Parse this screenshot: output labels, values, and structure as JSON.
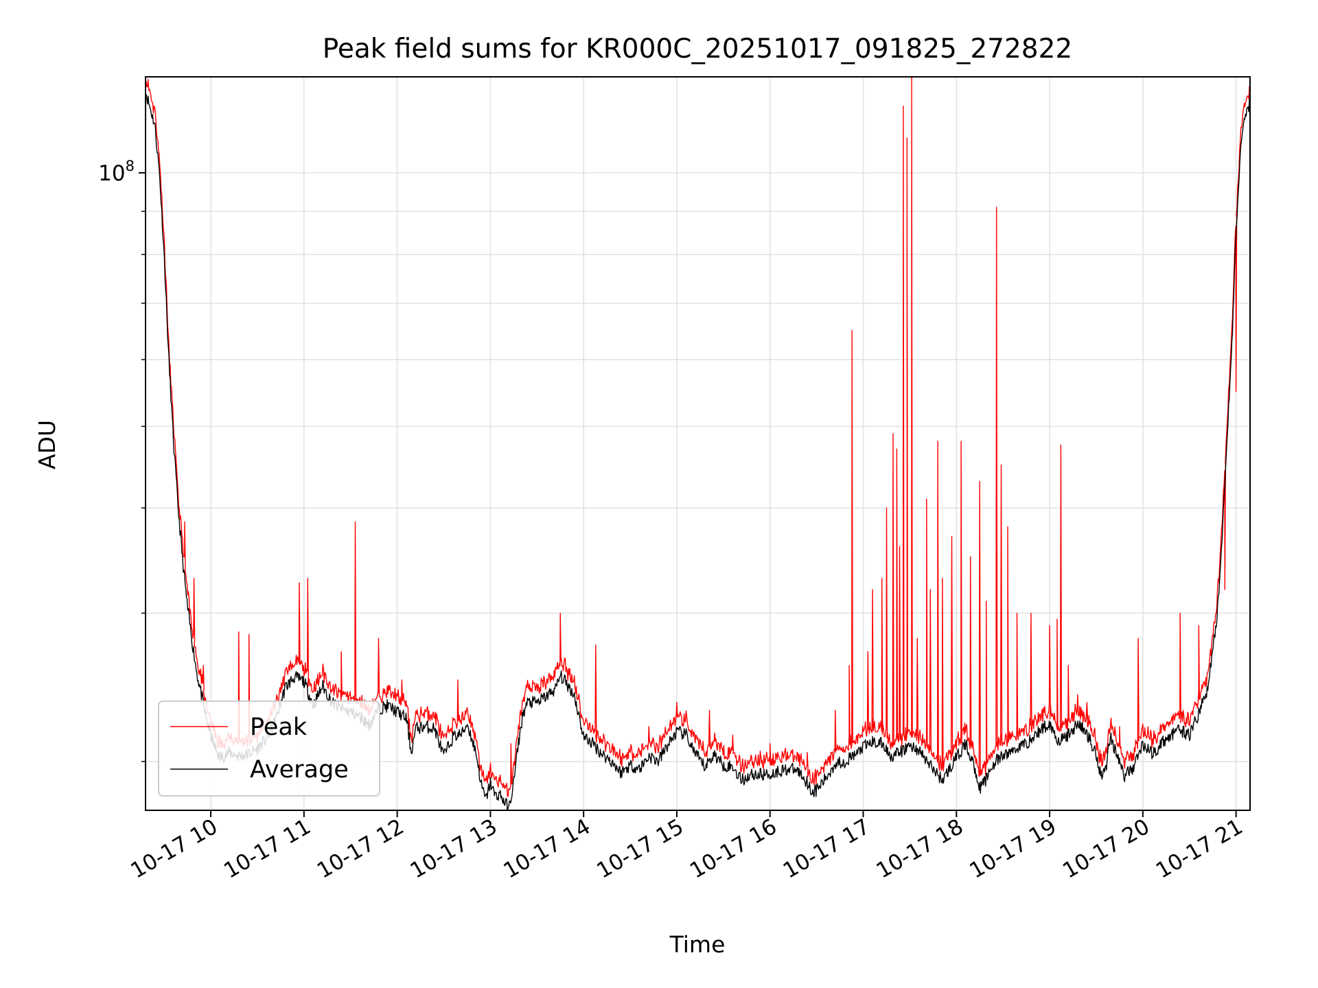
{
  "chart_data": {
    "type": "line",
    "title": "Peak field sums for KR000C_20251017_091825_272822",
    "xlabel": "Time",
    "ylabel": "ADU",
    "yscale": "log",
    "xlim": [
      9.3,
      21.15
    ],
    "ylim": [
      17500000,
      130000000
    ],
    "x_ticks": [
      {
        "value": 10,
        "label": "10-17 10"
      },
      {
        "value": 11,
        "label": "10-17 11"
      },
      {
        "value": 12,
        "label": "10-17 12"
      },
      {
        "value": 13,
        "label": "10-17 13"
      },
      {
        "value": 14,
        "label": "10-17 14"
      },
      {
        "value": 15,
        "label": "10-17 15"
      },
      {
        "value": 16,
        "label": "10-17 16"
      },
      {
        "value": 17,
        "label": "10-17 17"
      },
      {
        "value": 18,
        "label": "10-17 18"
      },
      {
        "value": 19,
        "label": "10-17 19"
      },
      {
        "value": 20,
        "label": "10-17 20"
      },
      {
        "value": 21,
        "label": "10-17 21"
      }
    ],
    "y_major_ticks": [
      {
        "value": 100000000,
        "base": "10",
        "exp": "8"
      }
    ],
    "y_minor_ticks": [
      20000000,
      30000000,
      40000000,
      50000000,
      60000000,
      70000000,
      80000000,
      90000000
    ],
    "grid": true,
    "legend_position": "lower-left",
    "series": [
      {
        "name": "Average",
        "color": "#000000",
        "points": [
          [
            9.3,
            125000000
          ],
          [
            9.4,
            114000000
          ],
          [
            9.45,
            100000000
          ],
          [
            9.5,
            80000000
          ],
          [
            9.55,
            60000000
          ],
          [
            9.6,
            48000000
          ],
          [
            9.65,
            40000000
          ],
          [
            9.7,
            34500000
          ],
          [
            9.75,
            30500000
          ],
          [
            9.8,
            27800000
          ],
          [
            9.85,
            25500000
          ],
          [
            9.9,
            24000000
          ],
          [
            9.95,
            22500000
          ],
          [
            10.0,
            21500000
          ],
          [
            10.05,
            20700000
          ],
          [
            10.1,
            20200000
          ],
          [
            10.2,
            20500000
          ],
          [
            10.3,
            20300000
          ],
          [
            10.4,
            20400000
          ],
          [
            10.5,
            20700000
          ],
          [
            10.6,
            21300000
          ],
          [
            10.7,
            22500000
          ],
          [
            10.8,
            24500000
          ],
          [
            10.9,
            25200000
          ],
          [
            11.0,
            24900000
          ],
          [
            11.1,
            23300000
          ],
          [
            11.2,
            24600000
          ],
          [
            11.3,
            23500000
          ],
          [
            11.4,
            23100000
          ],
          [
            11.5,
            22900000
          ],
          [
            11.6,
            22600000
          ],
          [
            11.7,
            22100000
          ],
          [
            11.8,
            23100000
          ],
          [
            11.9,
            23300000
          ],
          [
            12.0,
            22900000
          ],
          [
            12.1,
            22500000
          ],
          [
            12.15,
            20500000
          ],
          [
            12.2,
            21900000
          ],
          [
            12.3,
            22000000
          ],
          [
            12.4,
            21900000
          ],
          [
            12.5,
            20300000
          ],
          [
            12.6,
            21400000
          ],
          [
            12.7,
            21600000
          ],
          [
            12.75,
            22200000
          ],
          [
            12.8,
            21300000
          ],
          [
            12.85,
            20400000
          ],
          [
            12.9,
            18800000
          ],
          [
            12.95,
            18000000
          ],
          [
            13.0,
            18900000
          ],
          [
            13.05,
            18200000
          ],
          [
            13.1,
            18300000
          ],
          [
            13.15,
            17900000
          ],
          [
            13.2,
            17600000
          ],
          [
            13.25,
            18900000
          ],
          [
            13.3,
            21000000
          ],
          [
            13.35,
            22800000
          ],
          [
            13.4,
            23500000
          ],
          [
            13.5,
            23500000
          ],
          [
            13.6,
            23900000
          ],
          [
            13.7,
            24400000
          ],
          [
            13.75,
            25300000
          ],
          [
            13.8,
            24900000
          ],
          [
            13.9,
            24000000
          ],
          [
            14.0,
            21400000
          ],
          [
            14.1,
            21000000
          ],
          [
            14.2,
            20400000
          ],
          [
            14.3,
            20000000
          ],
          [
            14.4,
            19400000
          ],
          [
            14.5,
            19800000
          ],
          [
            14.6,
            19600000
          ],
          [
            14.7,
            20300000
          ],
          [
            14.8,
            20000000
          ],
          [
            14.9,
            20900000
          ],
          [
            15.0,
            21700000
          ],
          [
            15.1,
            21500000
          ],
          [
            15.2,
            20400000
          ],
          [
            15.3,
            19700000
          ],
          [
            15.4,
            20400000
          ],
          [
            15.5,
            19800000
          ],
          [
            15.6,
            19700000
          ],
          [
            15.7,
            19000000
          ],
          [
            15.8,
            19300000
          ],
          [
            15.9,
            19300000
          ],
          [
            16.0,
            19300000
          ],
          [
            16.1,
            19500000
          ],
          [
            16.2,
            19600000
          ],
          [
            16.3,
            19500000
          ],
          [
            16.4,
            18900000
          ],
          [
            16.45,
            18400000
          ],
          [
            16.5,
            18500000
          ],
          [
            16.6,
            19100000
          ],
          [
            16.7,
            19900000
          ],
          [
            16.8,
            20000000
          ],
          [
            16.9,
            20300000
          ],
          [
            17.0,
            20800000
          ],
          [
            17.1,
            21100000
          ],
          [
            17.2,
            21000000
          ],
          [
            17.3,
            20300000
          ],
          [
            17.4,
            20500000
          ],
          [
            17.5,
            20900000
          ],
          [
            17.6,
            20600000
          ],
          [
            17.7,
            19900000
          ],
          [
            17.8,
            19300000
          ],
          [
            17.85,
            19000000
          ],
          [
            17.9,
            19400000
          ],
          [
            18.0,
            20200000
          ],
          [
            18.1,
            21000000
          ],
          [
            18.2,
            19600000
          ],
          [
            18.25,
            18600000
          ],
          [
            18.3,
            18900000
          ],
          [
            18.4,
            19900000
          ],
          [
            18.5,
            20300000
          ],
          [
            18.6,
            20600000
          ],
          [
            18.7,
            20900000
          ],
          [
            18.8,
            21200000
          ],
          [
            18.9,
            21800000
          ],
          [
            19.0,
            22200000
          ],
          [
            19.1,
            21100000
          ],
          [
            19.2,
            21500000
          ],
          [
            19.3,
            22200000
          ],
          [
            19.4,
            21600000
          ],
          [
            19.5,
            20400000
          ],
          [
            19.55,
            19300000
          ],
          [
            19.6,
            19500000
          ],
          [
            19.65,
            21500000
          ],
          [
            19.7,
            20700000
          ],
          [
            19.8,
            19200000
          ],
          [
            19.9,
            19700000
          ],
          [
            20.0,
            21000000
          ],
          [
            20.1,
            20400000
          ],
          [
            20.2,
            21000000
          ],
          [
            20.3,
            21500000
          ],
          [
            20.4,
            21800000
          ],
          [
            20.5,
            21500000
          ],
          [
            20.6,
            22800000
          ],
          [
            20.7,
            24500000
          ],
          [
            20.8,
            30000000
          ],
          [
            20.85,
            37000000
          ],
          [
            20.9,
            48000000
          ],
          [
            20.95,
            60000000
          ],
          [
            21.0,
            86000000
          ],
          [
            21.05,
            106000000
          ],
          [
            21.1,
            118000000
          ],
          [
            21.15,
            121000000
          ]
        ]
      },
      {
        "name": "Peak",
        "color": "#ff0000",
        "offset_ratio": 1.04,
        "spikes": [
          [
            9.72,
            38500000
          ],
          [
            9.82,
            33000000
          ],
          [
            9.92,
            26000000
          ],
          [
            10.3,
            28500000
          ],
          [
            10.41,
            28300000
          ],
          [
            10.95,
            32600000
          ],
          [
            11.04,
            33000000
          ],
          [
            11.4,
            27000000
          ],
          [
            11.55,
            38500000
          ],
          [
            11.8,
            28000000
          ],
          [
            12.05,
            25000000
          ],
          [
            12.65,
            25000000
          ],
          [
            13.22,
            21000000
          ],
          [
            13.75,
            30000000
          ],
          [
            14.13,
            27500000
          ],
          [
            14.7,
            22000000
          ],
          [
            15.0,
            23500000
          ],
          [
            15.35,
            23000000
          ],
          [
            15.6,
            21500000
          ],
          [
            16.0,
            21000000
          ],
          [
            16.4,
            20500000
          ],
          [
            16.7,
            23000000
          ],
          [
            16.85,
            26000000
          ],
          [
            16.88,
            65000000
          ],
          [
            17.05,
            27000000
          ],
          [
            17.1,
            32000000
          ],
          [
            17.2,
            33000000
          ],
          [
            17.25,
            40000000
          ],
          [
            17.32,
            49000000
          ],
          [
            17.36,
            47000000
          ],
          [
            17.39,
            36000000
          ],
          [
            17.43,
            120000000
          ],
          [
            17.47,
            110000000
          ],
          [
            17.52,
            130000000
          ],
          [
            17.58,
            28000000
          ],
          [
            17.68,
            41000000
          ],
          [
            17.72,
            32000000
          ],
          [
            17.8,
            48000000
          ],
          [
            17.85,
            33000000
          ],
          [
            17.95,
            37000000
          ],
          [
            18.05,
            48000000
          ],
          [
            18.15,
            35000000
          ],
          [
            18.25,
            43000000
          ],
          [
            18.32,
            31000000
          ],
          [
            18.43,
            91000000
          ],
          [
            18.48,
            45000000
          ],
          [
            18.55,
            38000000
          ],
          [
            18.65,
            30000000
          ],
          [
            18.8,
            30000000
          ],
          [
            19.0,
            29000000
          ],
          [
            19.08,
            29500000
          ],
          [
            19.12,
            47500000
          ],
          [
            19.2,
            26000000
          ],
          [
            19.3,
            24000000
          ],
          [
            19.4,
            23500000
          ],
          [
            19.75,
            22000000
          ],
          [
            19.95,
            28000000
          ],
          [
            20.4,
            30000000
          ],
          [
            20.6,
            29000000
          ],
          [
            20.88,
            32000000
          ],
          [
            21.0,
            55000000
          ]
        ]
      }
    ]
  }
}
